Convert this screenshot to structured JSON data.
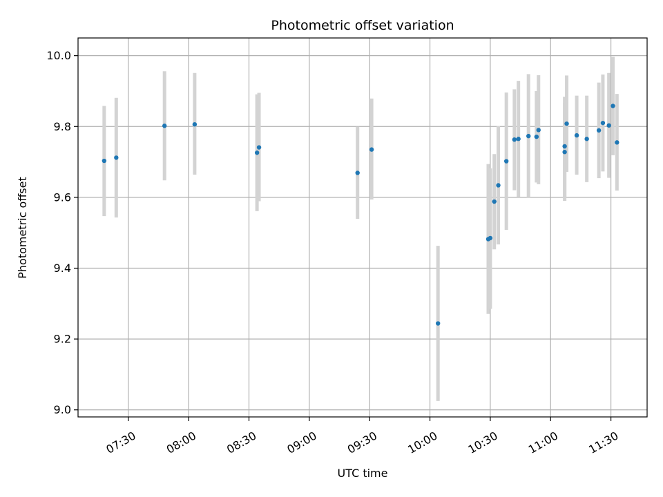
{
  "chart_data": {
    "type": "scatter",
    "title": "Photometric offset variation",
    "xlabel": "UTC time",
    "ylabel": "Photometric offset",
    "xlim": [
      "07:05",
      "11:48"
    ],
    "ylim": [
      8.98,
      10.05
    ],
    "x_ticks": [
      "07:30",
      "08:00",
      "08:30",
      "09:00",
      "09:30",
      "10:00",
      "10:30",
      "11:00",
      "11:30"
    ],
    "y_ticks": [
      "9.0",
      "9.2",
      "9.4",
      "9.6",
      "9.8",
      "10.0"
    ],
    "grid": true,
    "colors": {
      "point": "#1f77b4",
      "errorbar": "#d3d3d3",
      "grid": "#b0b0b0"
    },
    "points": [
      {
        "x": "07:18",
        "y": 9.703,
        "ylow": 9.547,
        "yhigh": 9.858
      },
      {
        "x": "07:24",
        "y": 9.712,
        "ylow": 9.543,
        "yhigh": 9.881
      },
      {
        "x": "07:48",
        "y": 9.802,
        "ylow": 9.648,
        "yhigh": 9.956
      },
      {
        "x": "08:03",
        "y": 9.806,
        "ylow": 9.664,
        "yhigh": 9.951
      },
      {
        "x": "08:34",
        "y": 9.726,
        "ylow": 9.561,
        "yhigh": 9.891
      },
      {
        "x": "08:35",
        "y": 9.741,
        "ylow": 9.589,
        "yhigh": 9.895
      },
      {
        "x": "09:24",
        "y": 9.669,
        "ylow": 9.539,
        "yhigh": 9.799
      },
      {
        "x": "09:31",
        "y": 9.735,
        "ylow": 9.594,
        "yhigh": 9.879
      },
      {
        "x": "10:04",
        "y": 9.244,
        "ylow": 9.025,
        "yhigh": 9.463
      },
      {
        "x": "10:29",
        "y": 9.482,
        "ylow": 9.271,
        "yhigh": 9.694
      },
      {
        "x": "10:30",
        "y": 9.485,
        "ylow": 9.285,
        "yhigh": 9.682
      },
      {
        "x": "10:32",
        "y": 9.588,
        "ylow": 9.453,
        "yhigh": 9.722
      },
      {
        "x": "10:34",
        "y": 9.634,
        "ylow": 9.467,
        "yhigh": 9.801
      },
      {
        "x": "10:38",
        "y": 9.702,
        "ylow": 9.508,
        "yhigh": 9.896
      },
      {
        "x": "10:42",
        "y": 9.763,
        "ylow": 9.62,
        "yhigh": 9.905
      },
      {
        "x": "10:44",
        "y": 9.765,
        "ylow": 9.601,
        "yhigh": 9.929
      },
      {
        "x": "10:49",
        "y": 9.773,
        "ylow": 9.6,
        "yhigh": 9.948
      },
      {
        "x": "10:53",
        "y": 9.771,
        "ylow": 9.642,
        "yhigh": 9.9
      },
      {
        "x": "10:54",
        "y": 9.79,
        "ylow": 9.637,
        "yhigh": 9.945
      },
      {
        "x": "11:07",
        "y": 9.728,
        "ylow": 9.59,
        "yhigh": 9.866
      },
      {
        "x": "11:07",
        "y": 9.744,
        "ylow": 9.6,
        "yhigh": 9.884
      },
      {
        "x": "11:08",
        "y": 9.808,
        "ylow": 9.672,
        "yhigh": 9.944
      },
      {
        "x": "11:13",
        "y": 9.775,
        "ylow": 9.664,
        "yhigh": 9.887
      },
      {
        "x": "11:18",
        "y": 9.765,
        "ylow": 9.643,
        "yhigh": 9.887
      },
      {
        "x": "11:24",
        "y": 9.789,
        "ylow": 9.654,
        "yhigh": 9.924
      },
      {
        "x": "11:26",
        "y": 9.81,
        "ylow": 9.673,
        "yhigh": 9.947
      },
      {
        "x": "11:29",
        "y": 9.803,
        "ylow": 9.655,
        "yhigh": 9.951
      },
      {
        "x": "11:31",
        "y": 9.858,
        "ylow": 9.719,
        "yhigh": 9.997
      },
      {
        "x": "11:33",
        "y": 9.755,
        "ylow": 9.619,
        "yhigh": 9.892
      }
    ]
  }
}
